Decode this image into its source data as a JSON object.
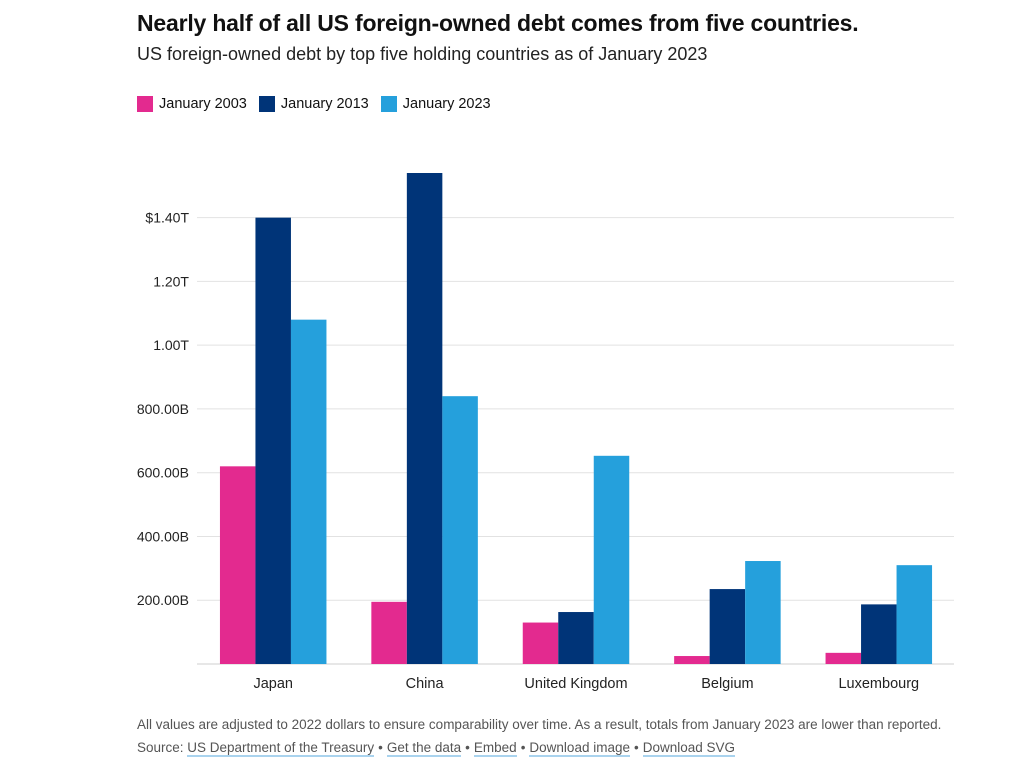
{
  "chart_data": {
    "type": "bar",
    "title": "Nearly half of all US foreign-owned debt comes from five countries.",
    "subtitle": "US foreign-owned debt by top five holding countries as of January 2023",
    "categories": [
      "Japan",
      "China",
      "United Kingdom",
      "Belgium",
      "Luxembourg"
    ],
    "series": [
      {
        "name": "January 2003",
        "color": "#e32a8f",
        "values": [
          620,
          195,
          130,
          25,
          35
        ]
      },
      {
        "name": "January 2013",
        "color": "#003478",
        "values": [
          1400,
          1540,
          163,
          235,
          187
        ]
      },
      {
        "name": "January 2023",
        "color": "#25a0dc",
        "values": [
          1080,
          840,
          653,
          323,
          310
        ]
      }
    ],
    "value_unit": "billions USD (2022 dollars)",
    "ylim": [
      0,
      1540
    ],
    "yticks": [
      {
        "value": 200,
        "label": "200.00B"
      },
      {
        "value": 400,
        "label": "400.00B"
      },
      {
        "value": 600,
        "label": "600.00B"
      },
      {
        "value": 800,
        "label": "800.00B"
      },
      {
        "value": 1000,
        "label": "1.00T"
      },
      {
        "value": 1200,
        "label": "1.20T"
      },
      {
        "value": 1400,
        "label": "$1.40T"
      }
    ],
    "grid": true,
    "legend_position": "top-left",
    "xlabel": "",
    "ylabel": ""
  },
  "footnote": "All values are adjusted to 2022 dollars to ensure comparability over time. As a result, totals from January 2023 are lower than reported.",
  "source": {
    "prefix": "Source: ",
    "links": [
      "US Department of the Treasury",
      "Get the data",
      "Embed",
      "Download image",
      "Download SVG"
    ],
    "separator": "•"
  }
}
